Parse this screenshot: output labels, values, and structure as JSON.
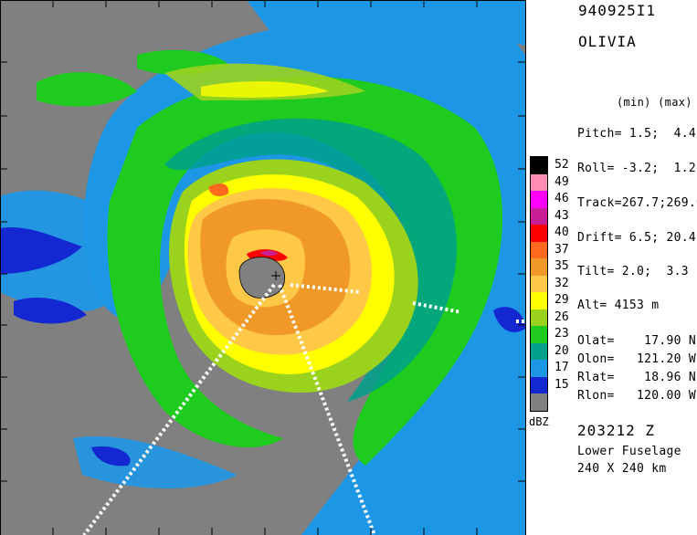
{
  "header": {
    "flight_id": "940925I1",
    "storm_name": "OLIVIA",
    "minmax_label": "(min) (max)"
  },
  "params": [
    {
      "label": "Pitch=",
      "value": "1.5;  4.4"
    },
    {
      "label": "Roll=",
      "value": "-3.2;  1.2"
    },
    {
      "label": "Track=",
      "value": "267.7;269.0"
    },
    {
      "label": "Drift=",
      "value": "6.5; 20.4"
    },
    {
      "label": "Tilt=",
      "value": "2.0;  3.3"
    },
    {
      "label": "Alt=",
      "value": "4153 m"
    }
  ],
  "coords": [
    {
      "label": "Olat=",
      "value": "17.90 N"
    },
    {
      "label": "Olon=",
      "value": "121.20 W"
    },
    {
      "label": "Rlat=",
      "value": "18.96 N"
    },
    {
      "label": "Rlon=",
      "value": "120.00 W"
    }
  ],
  "footer": {
    "time": "203212 Z",
    "radar": "Lower Fuselage",
    "domain": "240 X 240 km"
  },
  "legend": {
    "unit": "dBZ",
    "levels": [
      {
        "value": "52",
        "color": "#000000"
      },
      {
        "value": "49",
        "color": "#ff8cb4"
      },
      {
        "value": "46",
        "color": "#ff00ff"
      },
      {
        "value": "43",
        "color": "#c81e96"
      },
      {
        "value": "40",
        "color": "#ff0000"
      },
      {
        "value": "37",
        "color": "#ff6a1e"
      },
      {
        "value": "35",
        "color": "#f09828"
      },
      {
        "value": "32",
        "color": "#ffc846"
      },
      {
        "value": "29",
        "color": "#ffff00"
      },
      {
        "value": "26",
        "color": "#9ad21e"
      },
      {
        "value": "23",
        "color": "#1ecb1e"
      },
      {
        "value": "20",
        "color": "#00a08c"
      },
      {
        "value": "17",
        "color": "#1e96e6"
      },
      {
        "value": "15",
        "color": "#1428d2"
      },
      {
        "value": "",
        "color": "#808080"
      }
    ]
  }
}
